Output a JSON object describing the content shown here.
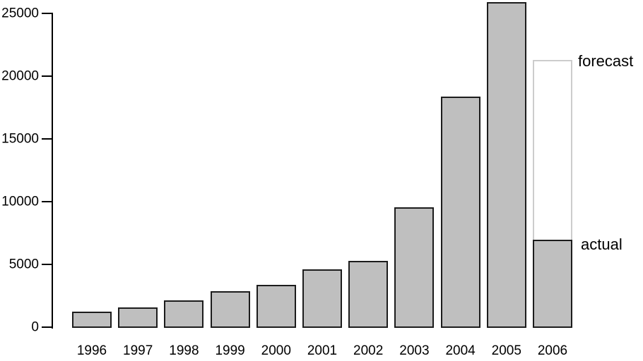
{
  "chart_data": {
    "type": "bar",
    "title": "",
    "xlabel": "",
    "ylabel": "",
    "categories": [
      "1996",
      "1997",
      "1998",
      "1999",
      "2000",
      "2001",
      "2002",
      "2003",
      "2004",
      "2005",
      "2006"
    ],
    "series": [
      {
        "name": "actual",
        "values": [
          1300,
          1650,
          2200,
          2900,
          3450,
          4650,
          5350,
          9600,
          18400,
          25950,
          7050
        ]
      },
      {
        "name": "forecast",
        "values": [
          null,
          null,
          null,
          null,
          null,
          null,
          null,
          null,
          null,
          null,
          21350
        ]
      }
    ],
    "annotations": [
      {
        "label": "forecast",
        "year": "2006",
        "series": "forecast"
      },
      {
        "label": "actual",
        "year": "2006",
        "series": "actual"
      }
    ],
    "ylim": [
      0,
      25000
    ],
    "yticks": [
      0,
      5000,
      10000,
      15000,
      20000,
      25000
    ],
    "ytick_labels": [
      "0",
      "5000",
      "10000",
      "15000",
      "20000",
      "25000"
    ],
    "grid": false,
    "legend_position": "labels-right-of-2006-bar",
    "colors": {
      "bar_fill": "#bfbfbf",
      "bar_border": "#1c1c1c",
      "forecast_fill": "#ffffff",
      "forecast_border": "#cccccc",
      "axis": "#000000",
      "text": "#000000",
      "background": "#ffffff"
    }
  }
}
